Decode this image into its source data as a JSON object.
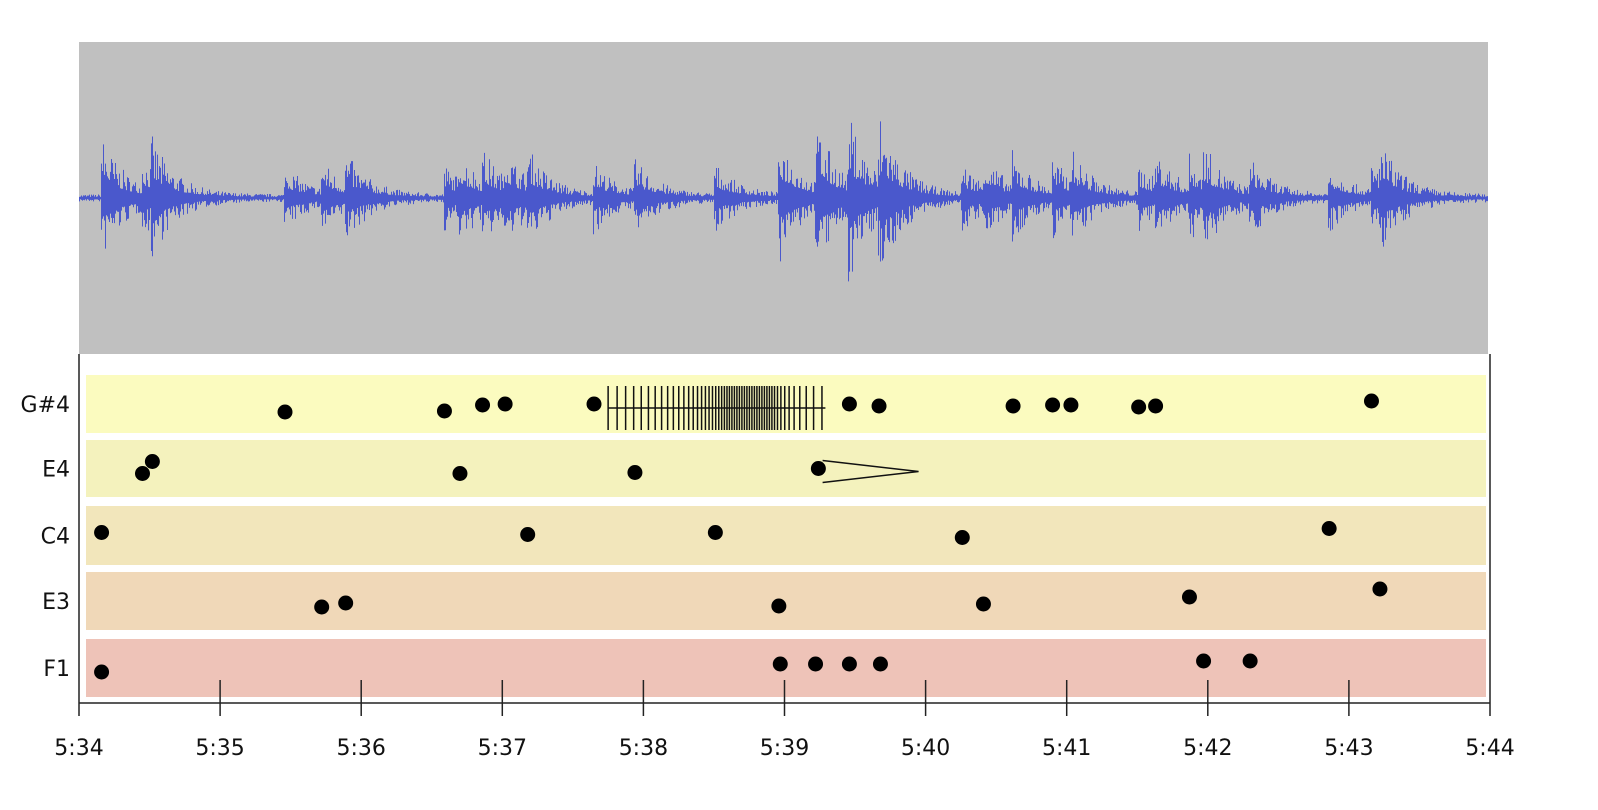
{
  "chart_data": {
    "type": "scatter",
    "title": "",
    "xlabel": "",
    "ylabel": "",
    "xlim_seconds": [
      334,
      344
    ],
    "x_ticks": [
      "5:34",
      "5:35",
      "5:36",
      "5:37",
      "5:38",
      "5:39",
      "5:40",
      "5:41",
      "5:42",
      "5:43",
      "5:44"
    ],
    "waveform": {
      "background": "#c0c0c0",
      "color": "#4a58cc"
    },
    "lanes": [
      {
        "label": "G#4",
        "color": "#fbfbbf",
        "onsets": [
          335.46,
          336.59,
          336.86,
          337.02,
          337.65,
          339.46,
          339.67,
          340.62,
          340.9,
          341.03,
          341.51,
          341.63,
          343.16
        ]
      },
      {
        "label": "E4",
        "color": "#f4f2bd",
        "onsets": [
          334.45,
          334.52,
          336.7,
          337.94,
          339.24
        ]
      },
      {
        "label": "C4",
        "color": "#f2e6bb",
        "onsets": [
          334.16,
          337.18,
          338.51,
          340.26,
          342.86
        ]
      },
      {
        "label": "E3",
        "color": "#f0d8b8",
        "onsets": [
          335.72,
          335.89,
          338.96,
          340.41,
          341.87,
          343.22
        ]
      },
      {
        "label": "F1",
        "color": "#eec3b8",
        "onsets": [
          334.16,
          338.97,
          339.22,
          339.46,
          339.68,
          341.97,
          342.3
        ]
      }
    ],
    "tremolo": {
      "lane": "G#4",
      "start": 337.75,
      "end": 339.29
    },
    "hairpin": {
      "lane": "E4",
      "type": "decrescendo",
      "start": 339.27,
      "end": 339.95
    }
  }
}
